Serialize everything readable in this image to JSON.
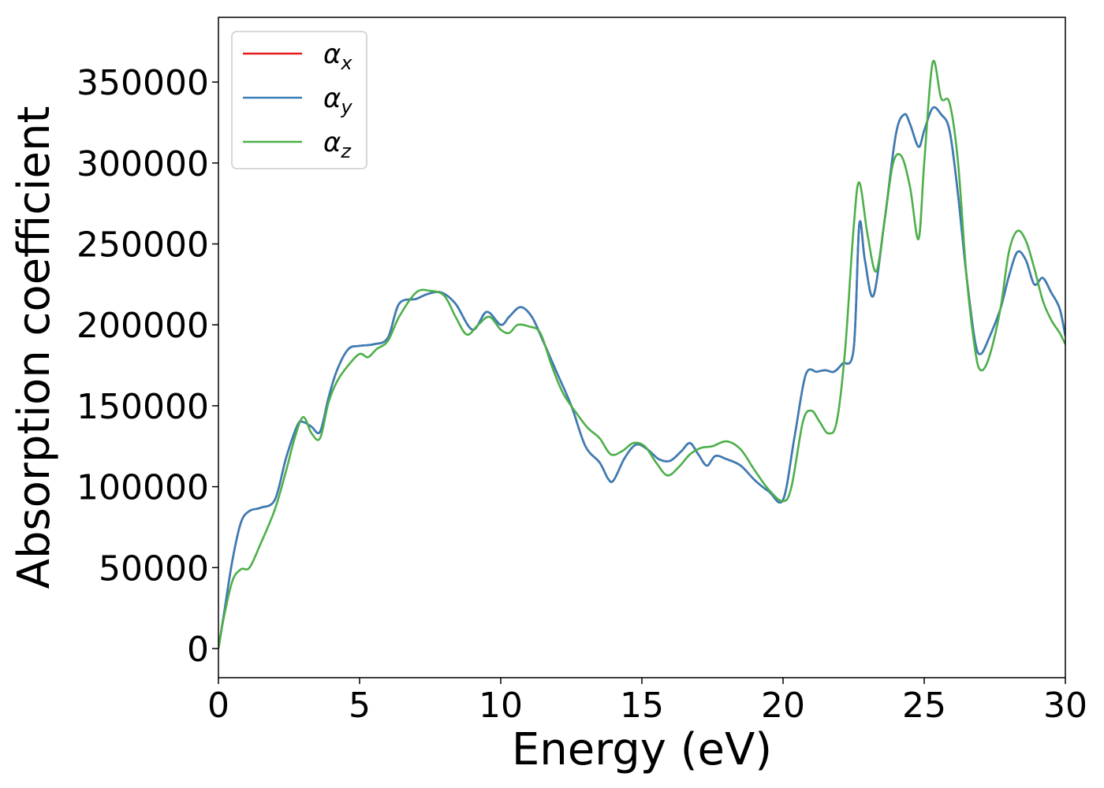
{
  "chart_data": {
    "type": "line",
    "xlabel": "Energy (eV)",
    "ylabel": "Absorption coefficient",
    "xlim": [
      0,
      30
    ],
    "ylim": [
      -18000,
      390000
    ],
    "xticks": [
      0,
      5,
      10,
      15,
      20,
      25,
      30
    ],
    "yticks": [
      0,
      50000,
      100000,
      150000,
      200000,
      250000,
      300000,
      350000
    ],
    "grid": false,
    "legend_position": "top-left",
    "series": [
      {
        "name": "α_x",
        "legend_main": "α",
        "legend_sub": "x",
        "color": "#e41a1c",
        "x": [
          0,
          0.2,
          0.5,
          0.8,
          1.1,
          1.5,
          2.0,
          2.4,
          2.8,
          3.0,
          3.3,
          3.6,
          3.9,
          4.2,
          4.6,
          5.0,
          5.5,
          6.0,
          6.4,
          7.0,
          7.4,
          7.9,
          8.4,
          9.0,
          9.5,
          10.0,
          10.3,
          10.7,
          11.1,
          11.5,
          12.0,
          12.5,
          13.0,
          13.5,
          13.8,
          14.0,
          14.4,
          14.8,
          15.2,
          15.6,
          16.0,
          16.4,
          16.7,
          17.0,
          17.3,
          17.6,
          18.0,
          18.5,
          19.0,
          19.5,
          20.0,
          20.4,
          20.8,
          21.2,
          21.5,
          21.8,
          22.1,
          22.5,
          22.7,
          22.9,
          23.2,
          23.6,
          24.0,
          24.3,
          24.5,
          24.8,
          25.0,
          25.3,
          25.6,
          25.9,
          26.2,
          26.5,
          26.8,
          27.0,
          27.3,
          27.7,
          28.0,
          28.3,
          28.6,
          28.9,
          29.2,
          29.5,
          29.8,
          30.0
        ],
        "values": [
          0,
          22000,
          55000,
          78000,
          85000,
          87000,
          92000,
          118000,
          138000,
          140000,
          137000,
          134000,
          155000,
          172000,
          185000,
          187000,
          188000,
          192000,
          213000,
          216000,
          219000,
          220000,
          213000,
          197000,
          208000,
          200000,
          205000,
          211000,
          205000,
          190000,
          170000,
          150000,
          125000,
          115000,
          105000,
          104000,
          118000,
          126000,
          123000,
          117000,
          116000,
          122000,
          127000,
          120000,
          113000,
          119000,
          117000,
          113000,
          104000,
          97000,
          92000,
          130000,
          169000,
          171000,
          172000,
          171000,
          176000,
          185000,
          262000,
          240000,
          218000,
          265000,
          318000,
          330000,
          324000,
          310000,
          320000,
          334000,
          330000,
          320000,
          280000,
          230000,
          190000,
          182000,
          192000,
          210000,
          230000,
          245000,
          240000,
          225000,
          229000,
          220000,
          210000,
          193000
        ]
      },
      {
        "name": "α_y",
        "legend_main": "α",
        "legend_sub": "y",
        "color": "#377eb8",
        "x": [
          0,
          0.2,
          0.5,
          0.8,
          1.1,
          1.5,
          2.0,
          2.4,
          2.8,
          3.0,
          3.3,
          3.6,
          3.9,
          4.2,
          4.6,
          5.0,
          5.5,
          6.0,
          6.4,
          7.0,
          7.4,
          7.9,
          8.4,
          9.0,
          9.5,
          10.0,
          10.3,
          10.7,
          11.1,
          11.5,
          12.0,
          12.5,
          13.0,
          13.5,
          13.8,
          14.0,
          14.4,
          14.8,
          15.2,
          15.6,
          16.0,
          16.4,
          16.7,
          17.0,
          17.3,
          17.6,
          18.0,
          18.5,
          19.0,
          19.5,
          20.0,
          20.4,
          20.8,
          21.2,
          21.5,
          21.8,
          22.1,
          22.5,
          22.7,
          22.9,
          23.2,
          23.6,
          24.0,
          24.3,
          24.5,
          24.8,
          25.0,
          25.3,
          25.6,
          25.9,
          26.2,
          26.5,
          26.8,
          27.0,
          27.3,
          27.7,
          28.0,
          28.3,
          28.6,
          28.9,
          29.2,
          29.5,
          29.8,
          30.0
        ],
        "values": [
          0,
          22000,
          55000,
          78000,
          85000,
          87000,
          92000,
          118000,
          138000,
          140000,
          137000,
          134000,
          155000,
          172000,
          185000,
          187000,
          188000,
          192000,
          213000,
          216000,
          219000,
          220000,
          213000,
          197000,
          208000,
          200000,
          205000,
          211000,
          205000,
          190000,
          170000,
          150000,
          125000,
          115000,
          105000,
          104000,
          118000,
          126000,
          123000,
          117000,
          116000,
          122000,
          127000,
          120000,
          113000,
          119000,
          117000,
          113000,
          104000,
          97000,
          92000,
          130000,
          169000,
          171000,
          172000,
          171000,
          176000,
          185000,
          262000,
          240000,
          218000,
          265000,
          318000,
          330000,
          324000,
          310000,
          320000,
          334000,
          330000,
          320000,
          280000,
          230000,
          190000,
          182000,
          192000,
          210000,
          230000,
          245000,
          240000,
          225000,
          229000,
          220000,
          210000,
          193000
        ]
      },
      {
        "name": "α_z",
        "legend_main": "α",
        "legend_sub": "z",
        "color": "#4daf4a",
        "x": [
          0,
          0.2,
          0.5,
          0.8,
          1.1,
          1.5,
          2.0,
          2.4,
          2.7,
          3.0,
          3.3,
          3.6,
          3.9,
          4.2,
          4.6,
          5.0,
          5.3,
          5.6,
          6.0,
          6.4,
          7.0,
          7.5,
          8.0,
          8.4,
          8.8,
          9.2,
          9.6,
          10.0,
          10.3,
          10.6,
          11.0,
          11.4,
          11.8,
          12.2,
          12.7,
          13.1,
          13.5,
          13.9,
          14.3,
          14.7,
          15.1,
          15.5,
          15.9,
          16.3,
          16.7,
          17.1,
          17.5,
          18.0,
          18.5,
          19.0,
          19.5,
          20.0,
          20.3,
          20.7,
          21.0,
          21.3,
          21.6,
          21.9,
          22.2,
          22.5,
          22.7,
          23.0,
          23.3,
          23.6,
          23.9,
          24.2,
          24.5,
          24.8,
          25.0,
          25.3,
          25.6,
          25.9,
          26.2,
          26.5,
          26.8,
          27.0,
          27.3,
          27.7,
          28.0,
          28.3,
          28.6,
          28.9,
          29.2,
          29.5,
          29.8,
          30.0
        ],
        "values": [
          0,
          20000,
          42000,
          49000,
          50000,
          65000,
          86000,
          110000,
          130000,
          143000,
          133000,
          130000,
          152000,
          165000,
          175000,
          182000,
          180000,
          185000,
          190000,
          205000,
          220000,
          221000,
          218000,
          205000,
          194000,
          200000,
          205000,
          197000,
          195000,
          200000,
          199000,
          195000,
          175000,
          158000,
          145000,
          136000,
          130000,
          120000,
          122000,
          127000,
          125000,
          115000,
          107000,
          112000,
          120000,
          124000,
          125000,
          128000,
          123000,
          110000,
          98000,
          91000,
          100000,
          140000,
          147000,
          140000,
          133000,
          140000,
          185000,
          260000,
          288000,
          255000,
          233000,
          265000,
          300000,
          304000,
          285000,
          253000,
          300000,
          362000,
          340000,
          337000,
          300000,
          230000,
          185000,
          172000,
          180000,
          210000,
          245000,
          258000,
          252000,
          235000,
          215000,
          203000,
          195000,
          188000
        ]
      }
    ]
  }
}
